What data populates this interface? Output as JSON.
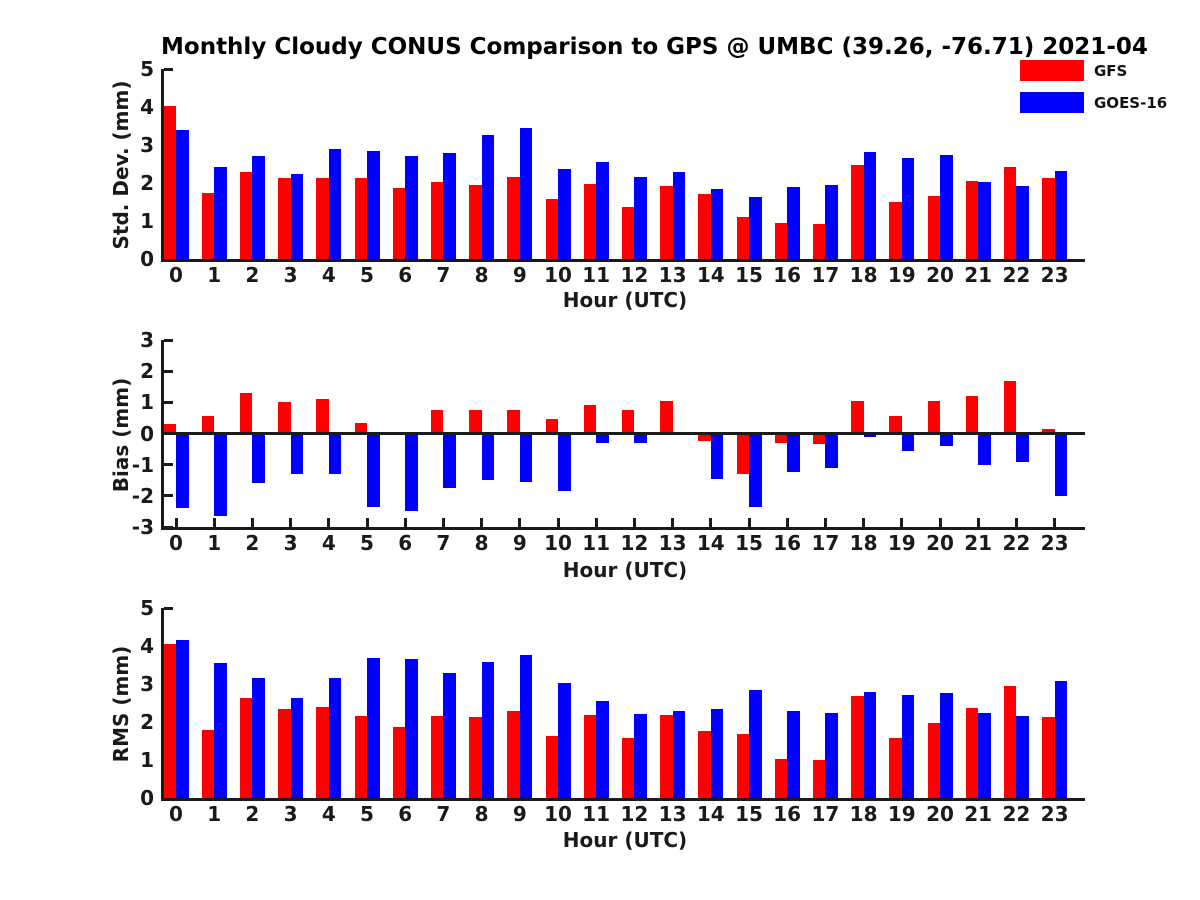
{
  "title": "Monthly Cloudy CONUS Comparison to GPS @ UMBC (39.26, -76.71) 2021-04",
  "legend": {
    "position": "top-right",
    "items": [
      {
        "label": "GFS",
        "color": "#ff0000"
      },
      {
        "label": "GOES-16",
        "color": "#0000ff"
      }
    ]
  },
  "chart_data": [
    {
      "type": "bar",
      "panel": "std-dev",
      "ylabel": "Std. Dev. (mm)",
      "xlabel": "Hour (UTC)",
      "ylim": [
        0,
        5
      ],
      "yticks": [
        0,
        1,
        2,
        3,
        4,
        5
      ],
      "grid": false,
      "categories": [
        "0",
        "1",
        "2",
        "3",
        "4",
        "5",
        "6",
        "7",
        "8",
        "9",
        "10",
        "11",
        "12",
        "13",
        "14",
        "15",
        "16",
        "17",
        "18",
        "19",
        "20",
        "21",
        "22",
        "23"
      ],
      "series": [
        {
          "name": "GFS",
          "color": "#ff0000",
          "values": [
            4.03,
            1.75,
            2.3,
            2.12,
            2.12,
            2.12,
            1.87,
            2.03,
            1.95,
            2.17,
            1.57,
            1.97,
            1.38,
            1.91,
            1.72,
            1.1,
            0.95,
            0.93,
            2.47,
            1.5,
            1.67,
            2.06,
            2.42,
            2.12
          ]
        },
        {
          "name": "GOES-16",
          "color": "#0000ff",
          "values": [
            3.4,
            2.41,
            2.7,
            2.25,
            2.9,
            2.84,
            2.7,
            2.8,
            3.27,
            3.45,
            2.38,
            2.55,
            2.17,
            2.3,
            1.85,
            1.62,
            1.9,
            1.94,
            2.82,
            2.66,
            2.73,
            2.02,
            1.93,
            2.31
          ]
        }
      ]
    },
    {
      "type": "bar",
      "panel": "bias",
      "ylabel": "Bias (mm)",
      "xlabel": "Hour (UTC)",
      "ylim": [
        -3,
        3
      ],
      "yticks": [
        -3,
        -2,
        -1,
        0,
        1,
        2,
        3
      ],
      "grid": false,
      "categories": [
        "0",
        "1",
        "2",
        "3",
        "4",
        "5",
        "6",
        "7",
        "8",
        "9",
        "10",
        "11",
        "12",
        "13",
        "14",
        "15",
        "16",
        "17",
        "18",
        "19",
        "20",
        "21",
        "22",
        "23"
      ],
      "series": [
        {
          "name": "GFS",
          "color": "#ff0000",
          "values": [
            0.3,
            0.55,
            1.3,
            1.0,
            1.1,
            0.35,
            0.0,
            0.75,
            0.75,
            0.75,
            0.45,
            0.9,
            0.75,
            1.03,
            -0.25,
            -1.3,
            -0.3,
            -0.35,
            1.05,
            0.55,
            1.05,
            1.2,
            1.7,
            0.15
          ]
        },
        {
          "name": "GOES-16",
          "color": "#0000ff",
          "values": [
            -2.4,
            -2.65,
            -1.6,
            -1.3,
            -1.3,
            -2.35,
            -2.5,
            -1.75,
            -1.5,
            -1.55,
            -1.85,
            -0.3,
            -0.3,
            -0.05,
            -1.45,
            -2.35,
            -1.25,
            -1.1,
            -0.1,
            -0.55,
            -0.4,
            -1.0,
            -0.9,
            -2.0
          ]
        }
      ]
    },
    {
      "type": "bar",
      "panel": "rms",
      "ylabel": "RMS (mm)",
      "xlabel": "Hour (UTC)",
      "ylim": [
        0,
        5
      ],
      "yticks": [
        0,
        1,
        2,
        3,
        4,
        5
      ],
      "grid": false,
      "categories": [
        "0",
        "1",
        "2",
        "3",
        "4",
        "5",
        "6",
        "7",
        "8",
        "9",
        "10",
        "11",
        "12",
        "13",
        "14",
        "15",
        "16",
        "17",
        "18",
        "19",
        "20",
        "21",
        "22",
        "23"
      ],
      "series": [
        {
          "name": "GFS",
          "color": "#ff0000",
          "values": [
            4.05,
            1.8,
            2.62,
            2.33,
            2.4,
            2.17,
            1.88,
            2.17,
            2.12,
            2.3,
            1.62,
            2.19,
            1.57,
            2.18,
            1.77,
            1.68,
            1.03,
            1.0,
            2.69,
            1.58,
            1.97,
            2.38,
            2.96,
            2.12
          ]
        },
        {
          "name": "GOES-16",
          "color": "#0000ff",
          "values": [
            4.15,
            3.55,
            3.15,
            2.62,
            3.17,
            3.68,
            3.65,
            3.3,
            3.57,
            3.77,
            3.02,
            2.55,
            2.21,
            2.29,
            2.34,
            2.85,
            2.28,
            2.24,
            2.8,
            2.71,
            2.76,
            2.24,
            2.15,
            3.07
          ]
        }
      ]
    }
  ]
}
